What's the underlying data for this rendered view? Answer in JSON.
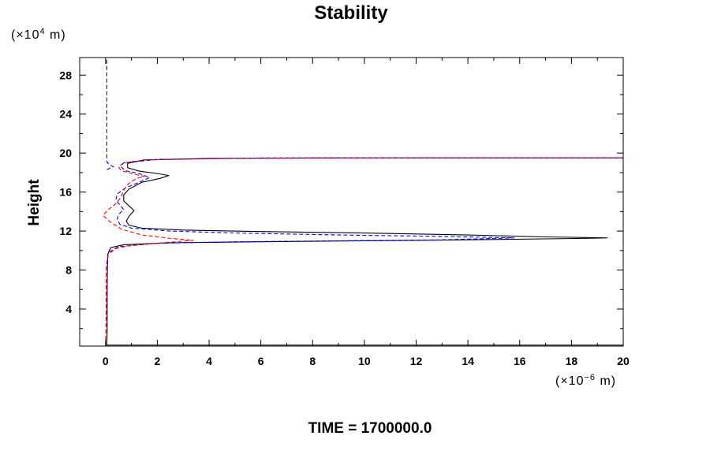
{
  "chart_data": {
    "type": "line",
    "title": "Stability",
    "ylabel": "Height",
    "xlabel": "",
    "x_unit": {
      "prefix": "(×10",
      "exponent": "−6",
      "suffix": " m)"
    },
    "y_unit": {
      "prefix": "(×10",
      "exponent": "4",
      "suffix": " m)"
    },
    "xlim": [
      -1,
      20
    ],
    "ylim": [
      0.2,
      29.8
    ],
    "x_ticks": [
      0,
      2,
      4,
      6,
      8,
      10,
      12,
      14,
      16,
      18,
      20
    ],
    "y_ticks": [
      4,
      8,
      12,
      16,
      20,
      24,
      28
    ],
    "x_tick_labels": [
      "0",
      "2",
      "4",
      "6",
      "8",
      "10",
      "12",
      "14",
      "16",
      "18",
      "20"
    ],
    "y_tick_labels": [
      "4",
      "8",
      "12",
      "16",
      "20",
      "24",
      "28"
    ],
    "grid": false,
    "legend": "none",
    "series": [
      {
        "color": "#000000",
        "style": "solid",
        "points": [
          [
            0.05,
            0.2
          ],
          [
            0.05,
            0.5
          ],
          [
            0.06,
            2
          ],
          [
            0.06,
            5
          ],
          [
            0.07,
            8
          ],
          [
            0.08,
            9.6
          ],
          [
            0.2,
            10.3
          ],
          [
            0.7,
            10.6
          ],
          [
            2.5,
            10.8
          ],
          [
            6,
            10.9
          ],
          [
            10,
            11.0
          ],
          [
            14,
            11.1
          ],
          [
            17,
            11.2
          ],
          [
            18.5,
            11.25
          ],
          [
            19.4,
            11.3
          ],
          [
            17,
            11.4
          ],
          [
            14,
            11.6
          ],
          [
            10,
            11.8
          ],
          [
            6,
            11.95
          ],
          [
            3,
            12.1
          ],
          [
            1.4,
            12.3
          ],
          [
            0.9,
            12.6
          ],
          [
            0.8,
            13.0
          ],
          [
            0.9,
            13.5
          ],
          [
            1.1,
            14.1
          ],
          [
            0.9,
            14.6
          ],
          [
            0.7,
            15.1
          ],
          [
            0.7,
            15.7
          ],
          [
            0.9,
            16.3
          ],
          [
            1.4,
            17.0
          ],
          [
            2.1,
            17.4
          ],
          [
            2.45,
            17.7
          ],
          [
            2.0,
            17.9
          ],
          [
            1.3,
            18.15
          ],
          [
            0.85,
            18.5
          ],
          [
            0.85,
            18.95
          ],
          [
            1.5,
            19.3
          ],
          [
            4,
            19.45
          ],
          [
            8,
            19.5
          ],
          [
            14,
            19.5
          ],
          [
            20,
            19.5
          ]
        ]
      },
      {
        "color": "#0000ff",
        "style": "dashed",
        "points": [
          [
            0.05,
            0.2
          ],
          [
            0.05,
            0.5
          ],
          [
            0.06,
            3
          ],
          [
            0.06,
            6
          ],
          [
            0.07,
            8.5
          ],
          [
            0.1,
            9.8
          ],
          [
            0.5,
            10.4
          ],
          [
            2,
            10.75
          ],
          [
            5,
            10.9
          ],
          [
            9,
            11.0
          ],
          [
            13,
            11.1
          ],
          [
            15.8,
            11.3
          ],
          [
            13,
            11.45
          ],
          [
            9,
            11.6
          ],
          [
            5,
            11.8
          ],
          [
            2.5,
            12.0
          ],
          [
            1.0,
            12.3
          ],
          [
            0.55,
            12.7
          ],
          [
            0.45,
            13.2
          ],
          [
            0.5,
            13.7
          ],
          [
            0.7,
            14.2
          ],
          [
            0.55,
            14.7
          ],
          [
            0.4,
            15.2
          ],
          [
            0.45,
            15.8
          ],
          [
            0.75,
            16.4
          ],
          [
            1.3,
            17.0
          ],
          [
            1.7,
            17.5
          ],
          [
            1.3,
            17.9
          ],
          [
            0.75,
            18.2
          ],
          [
            0.6,
            18.6
          ],
          [
            0.7,
            19.0
          ],
          [
            2,
            19.35
          ],
          [
            6,
            19.5
          ],
          [
            12,
            19.5
          ],
          [
            20,
            19.5
          ]
        ]
      },
      {
        "color": "#0000ff",
        "style": "dashed",
        "points": [
          [
            0.05,
            18.3
          ],
          [
            0.2,
            18.5
          ],
          [
            0.3,
            18.6
          ],
          [
            0.15,
            18.8
          ],
          [
            0.05,
            19.1
          ],
          [
            0.05,
            22
          ],
          [
            0.05,
            26
          ],
          [
            0.05,
            29.8
          ]
        ]
      },
      {
        "color": "#ff0000",
        "style": "dashed",
        "points": [
          [
            0.0,
            0.2
          ],
          [
            0.0,
            0.5
          ],
          [
            0.02,
            3
          ],
          [
            0.02,
            6
          ],
          [
            0.03,
            8.5
          ],
          [
            0.1,
            9.6
          ],
          [
            0.4,
            10.2
          ],
          [
            0.8,
            10.45
          ],
          [
            2.2,
            10.8
          ],
          [
            3.4,
            11.05
          ],
          [
            2.5,
            11.25
          ],
          [
            1.4,
            11.6
          ],
          [
            0.6,
            12.2
          ],
          [
            0.15,
            13.0
          ],
          [
            -0.1,
            13.6
          ],
          [
            0.1,
            14.2
          ],
          [
            0.4,
            14.8
          ],
          [
            0.6,
            15.5
          ],
          [
            0.7,
            16.2
          ],
          [
            0.9,
            16.9
          ],
          [
            1.2,
            17.4
          ],
          [
            1.5,
            17.6
          ],
          [
            1.1,
            17.85
          ],
          [
            0.6,
            18.2
          ],
          [
            0.5,
            18.6
          ],
          [
            0.7,
            19.0
          ],
          [
            1.5,
            19.3
          ],
          [
            5,
            19.45
          ],
          [
            12,
            19.5
          ],
          [
            20,
            19.5
          ]
        ]
      },
      {
        "color": "#000000",
        "style": "solid",
        "points": [
          [
            0.05,
            0.3
          ],
          [
            5,
            0.3
          ],
          [
            12,
            0.3
          ],
          [
            20,
            0.3
          ]
        ]
      },
      {
        "color": "#ff0000",
        "style": "dashed",
        "points": [
          [
            0.05,
            0.2
          ],
          [
            5,
            0.2
          ],
          [
            12,
            0.2
          ],
          [
            20,
            0.2
          ]
        ]
      }
    ]
  },
  "footer": {
    "time_label": "TIME = 1700000.0"
  }
}
